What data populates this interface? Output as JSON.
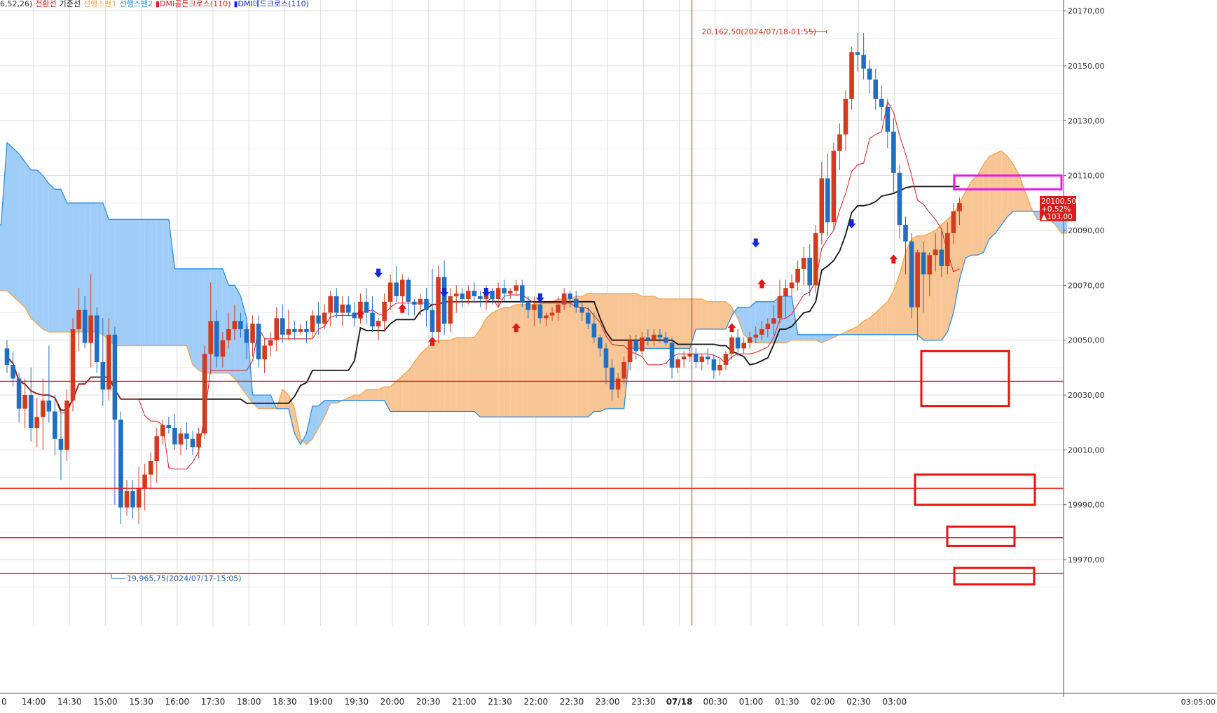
{
  "legend": [
    {
      "text": "6,52,26)",
      "color": "#333333"
    },
    {
      "text": "전환선",
      "color": "#e0191b"
    },
    {
      "text": "기준선",
      "color": "#111111"
    },
    {
      "text": "선행스팬1",
      "color": "#f3a54e"
    },
    {
      "text": "선행스팬2",
      "color": "#2b8fe6"
    },
    {
      "text": "▮DMI골든크로스(110)",
      "color": "#e0191b"
    },
    {
      "text": "▮DMI데드크로스(110)",
      "color": "#1428d8"
    }
  ],
  "colors": {
    "up": "#d43a1e",
    "down": "#1f6fc4",
    "tenkan": "#e0191b",
    "kijun": "#111111",
    "span1": "#f3a54e",
    "span2": "#2b8fe6",
    "cloud_orange": "#f8c594",
    "cloud_blue": "#9fcdf7",
    "grid": "#dcdcdc",
    "hline": "#ea1c1c",
    "box_red": "#ee1010",
    "box_magenta": "#ee12ee",
    "annot_high": "#d5301f",
    "annot_low": "#1f60b8"
  },
  "chart_data": {
    "type": "candlestick",
    "y_ticks": [
      "20170,00",
      "20150,00",
      "20130,00",
      "20110,00",
      "20090,00",
      "20070,00",
      "20050,00",
      "20030,00",
      "20010,00",
      "19990,00",
      "19970,00"
    ],
    "x_ticks": [
      "0",
      "14:00",
      "14:30",
      "15:00",
      "15:30",
      "16:00",
      "17:30",
      "18:00",
      "18:30",
      "19:00",
      "19:30",
      "20:00",
      "20:30",
      "21:00",
      "21:30",
      "22:00",
      "22:30",
      "23:00",
      "23:30",
      "07/18",
      "00:30",
      "01:00",
      "01:30",
      "02:00",
      "02:30",
      "03:00"
    ],
    "x_right_label": "03:05:00",
    "last_price": {
      "price": "20100,50",
      "pct": "+0,52%",
      "chg": "▲103,00"
    },
    "annotations": [
      {
        "text": "20,162,50(2024/07/18-01:55)",
        "type": "high"
      },
      {
        "text": "19,965,75(2024/07/17-15:05)",
        "type": "low"
      }
    ],
    "horizontal_lines": [
      20035,
      19996,
      19978,
      19965
    ],
    "session_line_label": "07/18",
    "boxes": [
      {
        "color": "red",
        "y_top": 20046,
        "y_bottom": 20026
      },
      {
        "color": "red",
        "y_top": 20001,
        "y_bottom": 19990
      },
      {
        "color": "red",
        "y_top": 19982,
        "y_bottom": 19975
      },
      {
        "color": "red",
        "y_top": 19967,
        "y_bottom": 19961
      },
      {
        "color": "magenta",
        "y_top": 20110,
        "y_bottom": 20105
      }
    ],
    "candles": [
      [
        20047,
        20050,
        20038,
        20041
      ],
      [
        20041,
        20046,
        20033,
        20036
      ],
      [
        20036,
        20038,
        20020,
        20025
      ],
      [
        20025,
        20036,
        20018,
        20030
      ],
      [
        20030,
        20040,
        20013,
        20018
      ],
      [
        20018,
        20029,
        20011,
        20022
      ],
      [
        20022,
        20036,
        20010,
        20028
      ],
      [
        20028,
        20048,
        20020,
        20024
      ],
      [
        20024,
        20030,
        20008,
        20014
      ],
      [
        20014,
        20024,
        19999,
        20010
      ],
      [
        20010,
        20032,
        20006,
        20028
      ],
      [
        20028,
        20058,
        20024,
        20054
      ],
      [
        20054,
        20069,
        20046,
        20061
      ],
      [
        20061,
        20066,
        20047,
        20049
      ],
      [
        20049,
        20074,
        20040,
        20059
      ],
      [
        20059,
        20062,
        20038,
        20042
      ],
      [
        20042,
        20058,
        20026,
        20032
      ],
      [
        20032,
        20058,
        20028,
        20052
      ],
      [
        20052,
        20055,
        19990,
        20021
      ],
      [
        20021,
        20024,
        19983,
        19989
      ],
      [
        19989,
        19999,
        19986,
        19995
      ],
      [
        19995,
        19999,
        19985,
        19989
      ],
      [
        19989,
        20004,
        19983,
        19996
      ],
      [
        19996,
        20005,
        19988,
        20001
      ],
      [
        20001,
        20009,
        19996,
        20006
      ],
      [
        20006,
        20018,
        19998,
        20015
      ],
      [
        20015,
        20021,
        20012,
        20019
      ],
      [
        20019,
        20022,
        20016,
        20018
      ],
      [
        20018,
        20023,
        20010,
        20012
      ],
      [
        20012,
        20018,
        20008,
        20016
      ],
      [
        20016,
        20020,
        20010,
        20014
      ],
      [
        20014,
        20017,
        20008,
        20011
      ],
      [
        20011,
        20018,
        20007,
        20016
      ],
      [
        20016,
        20048,
        20014,
        20045
      ],
      [
        20045,
        20071,
        20038,
        20057
      ],
      [
        20057,
        20061,
        20040,
        20044
      ],
      [
        20044,
        20053,
        20040,
        20050
      ],
      [
        20050,
        20060,
        20047,
        20054
      ],
      [
        20054,
        20063,
        20050,
        20057
      ],
      [
        20057,
        20060,
        20051,
        20054
      ],
      [
        20054,
        20056,
        20043,
        20049
      ],
      [
        20049,
        20059,
        20044,
        20056
      ],
      [
        20056,
        20059,
        20040,
        20043
      ],
      [
        20043,
        20051,
        20038,
        20048
      ],
      [
        20048,
        20053,
        20044,
        20050
      ],
      [
        20050,
        20062,
        20046,
        20058
      ],
      [
        20058,
        20063,
        20049,
        20052
      ],
      [
        20052,
        20061,
        20050,
        20054
      ],
      [
        20054,
        20057,
        20050,
        20053
      ],
      [
        20053,
        20056,
        20052,
        20054
      ],
      [
        20054,
        20057,
        20049,
        20053
      ],
      [
        20053,
        20061,
        20051,
        20059
      ],
      [
        20059,
        20064,
        20052,
        20056
      ],
      [
        20056,
        20063,
        20054,
        20060
      ],
      [
        20060,
        20068,
        20055,
        20066
      ],
      [
        20066,
        20069,
        20058,
        20060
      ],
      [
        20060,
        20066,
        20055,
        20063
      ],
      [
        20063,
        20066,
        20059,
        20060
      ],
      [
        20060,
        20064,
        20055,
        20058
      ],
      [
        20058,
        20067,
        20056,
        20064
      ],
      [
        20064,
        20069,
        20056,
        20060
      ],
      [
        20060,
        20066,
        20053,
        20055
      ],
      [
        20055,
        20058,
        20050,
        20057
      ],
      [
        20057,
        20067,
        20053,
        20064
      ],
      [
        20064,
        20074,
        20061,
        20071
      ],
      [
        20071,
        20077,
        20064,
        20066
      ],
      [
        20066,
        20074,
        20063,
        20072
      ],
      [
        20072,
        20073,
        20059,
        20064
      ],
      [
        20064,
        20065,
        20059,
        20063
      ],
      [
        20063,
        20067,
        20059,
        20065
      ],
      [
        20065,
        20069,
        20055,
        20061
      ],
      [
        20061,
        20076,
        20049,
        20053
      ],
      [
        20053,
        20077,
        20049,
        20073
      ],
      [
        20073,
        20079,
        20052,
        20056
      ],
      [
        20056,
        20069,
        20053,
        20066
      ],
      [
        20066,
        20070,
        20060,
        20067
      ],
      [
        20067,
        20069,
        20062,
        20065
      ],
      [
        20065,
        20070,
        20063,
        20068
      ],
      [
        20068,
        20071,
        20064,
        20066
      ],
      [
        20066,
        20068,
        20062,
        20065
      ],
      [
        20065,
        20070,
        20061,
        20068
      ],
      [
        20068,
        20069,
        20063,
        20065
      ],
      [
        20065,
        20071,
        20062,
        20069
      ],
      [
        20069,
        20072,
        20064,
        20067
      ],
      [
        20067,
        20069,
        20065,
        20068
      ],
      [
        20068,
        20072,
        20066,
        20070
      ],
      [
        20070,
        20072,
        20062,
        20064
      ],
      [
        20064,
        20066,
        20058,
        20061
      ],
      [
        20061,
        20066,
        20055,
        20063
      ],
      [
        20063,
        20065,
        20056,
        20058
      ],
      [
        20058,
        20060,
        20055,
        20059
      ],
      [
        20059,
        20062,
        20057,
        20060
      ],
      [
        20060,
        20066,
        20057,
        20063
      ],
      [
        20063,
        20069,
        20061,
        20067
      ],
      [
        20067,
        20068,
        20062,
        20065
      ],
      [
        20065,
        20068,
        20060,
        20062
      ],
      [
        20062,
        20064,
        20057,
        20060
      ],
      [
        20060,
        20062,
        20054,
        20056
      ],
      [
        20056,
        20060,
        20049,
        20051
      ],
      [
        20051,
        20052,
        20044,
        20047
      ],
      [
        20047,
        20049,
        20034,
        20040
      ],
      [
        20040,
        20043,
        20028,
        20032
      ],
      [
        20032,
        20038,
        20029,
        20036
      ],
      [
        20036,
        20044,
        20034,
        20042
      ],
      [
        20042,
        20052,
        20039,
        20050
      ],
      [
        20050,
        20052,
        20043,
        20046
      ],
      [
        20046,
        20053,
        20044,
        20051
      ],
      [
        20051,
        20054,
        20048,
        20050
      ],
      [
        20050,
        20054,
        20048,
        20052
      ],
      [
        20052,
        20054,
        20049,
        20051
      ],
      [
        20051,
        20053,
        20048,
        20049
      ],
      [
        20049,
        20051,
        20036,
        20040
      ],
      [
        20040,
        20044,
        20038,
        20043
      ],
      [
        20043,
        20046,
        20040,
        20044
      ],
      [
        20044,
        20047,
        20042,
        20045
      ],
      [
        20045,
        20047,
        20040,
        20042
      ],
      [
        20042,
        20045,
        20039,
        20044
      ],
      [
        20044,
        20047,
        20041,
        20043
      ],
      [
        20043,
        20045,
        20036,
        20039
      ],
      [
        20039,
        20043,
        20037,
        20041
      ],
      [
        20041,
        20046,
        20039,
        20045
      ],
      [
        20045,
        20052,
        20043,
        20051
      ],
      [
        20051,
        20054,
        20044,
        20047
      ],
      [
        20047,
        20051,
        20045,
        20049
      ],
      [
        20049,
        20053,
        20047,
        20051
      ],
      [
        20051,
        20055,
        20049,
        20052
      ],
      [
        20052,
        20057,
        20050,
        20054
      ],
      [
        20054,
        20058,
        20051,
        20056
      ],
      [
        20056,
        20063,
        20052,
        20058
      ],
      [
        20058,
        20072,
        20056,
        20066
      ],
      [
        20066,
        20072,
        20058,
        20069
      ],
      [
        20069,
        20074,
        20066,
        20071
      ],
      [
        20071,
        20079,
        20068,
        20076
      ],
      [
        20076,
        20084,
        20070,
        20080
      ],
      [
        20080,
        20085,
        20066,
        20070
      ],
      [
        20070,
        20092,
        20067,
        20089
      ],
      [
        20089,
        20115,
        20085,
        20109
      ],
      [
        20109,
        20118,
        20088,
        20093
      ],
      [
        20093,
        20122,
        20090,
        20119
      ],
      [
        20119,
        20129,
        20112,
        20125
      ],
      [
        20125,
        20141,
        20119,
        20138
      ],
      [
        20138,
        20157,
        20134,
        20155
      ],
      [
        20155,
        20162,
        20148,
        20154
      ],
      [
        20154,
        20162,
        20145,
        20149
      ],
      [
        20149,
        20152,
        20140,
        20145
      ],
      [
        20145,
        20149,
        20134,
        20138
      ],
      [
        20138,
        20143,
        20130,
        20135
      ],
      [
        20135,
        20138,
        20120,
        20126
      ],
      [
        20126,
        20131,
        20104,
        20111
      ],
      [
        20111,
        20114,
        20087,
        20092
      ],
      [
        20092,
        20095,
        20074,
        20086
      ],
      [
        20086,
        20089,
        20058,
        20062
      ],
      [
        20062,
        20083,
        20050,
        20082
      ],
      [
        20082,
        20086,
        20060,
        20074
      ],
      [
        20074,
        20082,
        20066,
        20081
      ],
      [
        20081,
        20089,
        20075,
        20083
      ],
      [
        20083,
        20090,
        20073,
        20077
      ],
      [
        20077,
        20093,
        20074,
        20089
      ],
      [
        20089,
        20100,
        20085,
        20097
      ],
      [
        20097,
        20102,
        20092,
        20100
      ]
    ]
  }
}
